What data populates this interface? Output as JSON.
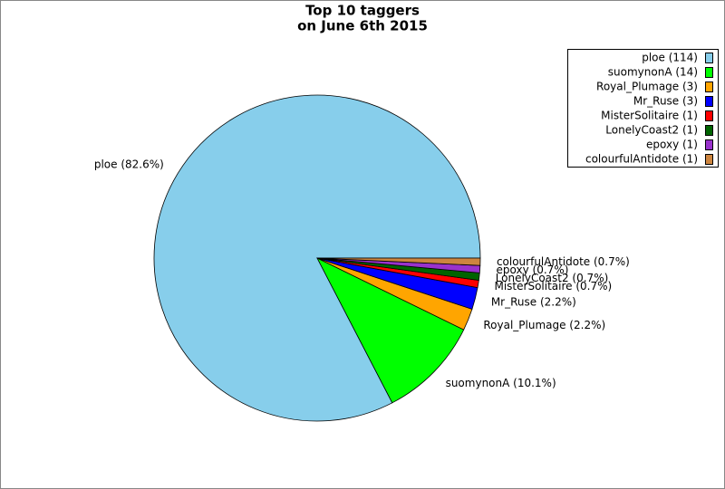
{
  "chart_data": {
    "type": "pie",
    "title": [
      "Top 10 taggers",
      "on June 6th 2015"
    ],
    "categories": [
      "ploe",
      "suomynonA",
      "Royal_Plumage",
      "Mr_Ruse",
      "MisterSolitaire",
      "LonelyCoast2",
      "epoxy",
      "colourfulAntidote"
    ],
    "values": [
      114,
      14,
      3,
      3,
      1,
      1,
      1,
      1
    ],
    "colors": [
      "#87ceeb",
      "#00ff00",
      "#ffa500",
      "#0000ff",
      "#ff0000",
      "#006400",
      "#9932cc",
      "#cd853f"
    ],
    "legend_labels": [
      "ploe (114)",
      "suomynonA (14)",
      "Royal_Plumage (3)",
      "Mr_Ruse (3)",
      "MisterSolitaire (1)",
      "LonelyCoast2 (1)",
      "epoxy (1)",
      "colourfulAntidote (1)"
    ],
    "slice_labels": [
      "ploe (82.6%)",
      "suomynonA (10.1%)",
      "Royal_Plumage (2.2%)",
      "Mr_Ruse (2.2%)",
      "MisterSolitaire (0.7%)",
      "LonelyCoast2 (0.7%)",
      "epoxy (0.7%)",
      "colourfulAntidote (0.7%)"
    ],
    "legend": "upper right"
  }
}
